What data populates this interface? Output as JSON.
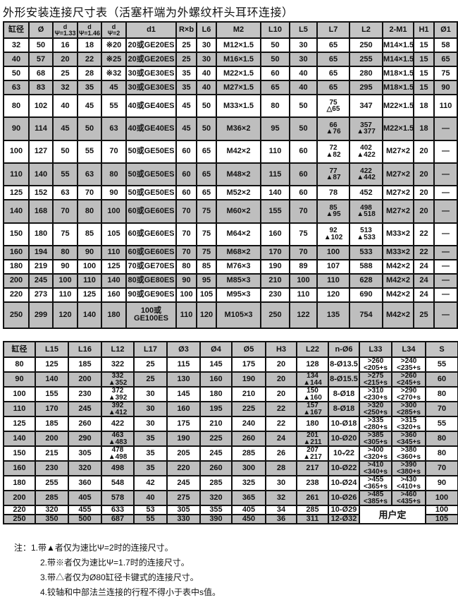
{
  "title": "外形安装连接尺寸表（活塞杆端为外螺纹杆头耳环连接）",
  "colors": {
    "shaded_row": "#bebebe",
    "header": "#c4c4c4",
    "border": "#111111"
  },
  "table1": {
    "headers": [
      "缸径",
      "Ø",
      "d\nΨ=1.33",
      "d\nΨ=1.46",
      "d\nΨ=2",
      "d1",
      "R×b",
      "L6",
      "M2",
      "L10",
      "L5",
      "L7",
      "L2",
      "2-M1",
      "H1",
      "Ø1"
    ],
    "rows": [
      [
        "32",
        "50",
        "16",
        "18",
        "※20",
        "20或GE20ES",
        "25",
        "30",
        "M12×1.5",
        "50",
        "30",
        "65",
        "250",
        "M14×1.5",
        "15",
        "58"
      ],
      [
        "40",
        "57",
        "20",
        "22",
        "※25",
        "20或GE20ES",
        "25",
        "30",
        "M16×1.5",
        "50",
        "30",
        "65",
        "255",
        "M14×1.5",
        "15",
        "65"
      ],
      [
        "50",
        "68",
        "25",
        "28",
        "※32",
        "30或GE30ES",
        "35",
        "40",
        "M22×1.5",
        "60",
        "40",
        "65",
        "280",
        "M18×1.5",
        "15",
        "75"
      ],
      [
        "63",
        "83",
        "32",
        "35",
        "45",
        "30或GE30ES",
        "35",
        "40",
        "M27×1.5",
        "65",
        "40",
        "65",
        "295",
        "M18×1.5",
        "15",
        "90"
      ],
      [
        "80",
        "102",
        "40",
        "45",
        "55",
        "40或GE40ES",
        "45",
        "50",
        "M33×1.5",
        "80",
        "50",
        "75\n△65",
        "347",
        "M22×1.5",
        "18",
        "110"
      ],
      [
        "90",
        "114",
        "45",
        "50",
        "63",
        "40或GE40ES",
        "45",
        "50",
        "M36×2",
        "95",
        "50",
        "66\n▲76",
        "357\n▲377",
        "M22×1.5",
        "18",
        "—"
      ],
      [
        "100",
        "127",
        "50",
        "55",
        "70",
        "50或GE50ES",
        "60",
        "65",
        "M42×2",
        "110",
        "60",
        "72\n▲82",
        "402\n▲422",
        "M27×2",
        "20",
        "—"
      ],
      [
        "110",
        "140",
        "55",
        "63",
        "80",
        "50或GE50ES",
        "60",
        "65",
        "M48×2",
        "115",
        "60",
        "77\n▲87",
        "422\n▲442",
        "M27×2",
        "20",
        "—"
      ],
      [
        "125",
        "152",
        "63",
        "70",
        "90",
        "50或GE50ES",
        "60",
        "65",
        "M52×2",
        "140",
        "60",
        "78",
        "452",
        "M27×2",
        "20",
        "—"
      ],
      [
        "140",
        "168",
        "70",
        "80",
        "100",
        "60或GE60ES",
        "70",
        "75",
        "M60×2",
        "155",
        "70",
        "85\n▲95",
        "498\n▲518",
        "M27×2",
        "20",
        "—"
      ],
      [
        "150",
        "180",
        "75",
        "85",
        "105",
        "60或GE60ES",
        "70",
        "75",
        "M64×2",
        "160",
        "75",
        "92\n▲102",
        "513\n▲533",
        "M33×2",
        "22",
        "—"
      ],
      [
        "160",
        "194",
        "80",
        "90",
        "110",
        "60或GE60ES",
        "70",
        "75",
        "M68×2",
        "170",
        "70",
        "100",
        "533",
        "M33×2",
        "22",
        "—"
      ],
      [
        "180",
        "219",
        "90",
        "100",
        "125",
        "70或GE70ES",
        "80",
        "85",
        "M76×3",
        "190",
        "89",
        "107",
        "588",
        "M42×2",
        "24",
        "—"
      ],
      [
        "200",
        "245",
        "100",
        "110",
        "140",
        "80或GE80ES",
        "90",
        "95",
        "M85×3",
        "210",
        "100",
        "110",
        "628",
        "M42×2",
        "24",
        "—"
      ],
      [
        "220",
        "273",
        "110",
        "125",
        "160",
        "90或GE90ES",
        "100",
        "105",
        "M95×3",
        "230",
        "110",
        "120",
        "690",
        "M42×2",
        "24",
        "—"
      ],
      [
        "250",
        "299",
        "120",
        "140",
        "180",
        "100或GE100ES",
        "110",
        "120",
        "M105×3",
        "250",
        "122",
        "135",
        "754",
        "M42×2",
        "25",
        "—"
      ]
    ]
  },
  "table2": {
    "headers": [
      "缸径",
      "L15",
      "L16",
      "L12",
      "L17",
      "Ø3",
      "Ø4",
      "Ø5",
      "H3",
      "L22",
      "n-Ø6",
      "L33",
      "L34",
      "S"
    ],
    "custom_label": "用户定",
    "rows": [
      [
        "80",
        "125",
        "185",
        "322",
        "25",
        "115",
        "145",
        "175",
        "20",
        "128",
        "8-Ø13.5",
        ">260\n<205+s",
        ">240\n<235+s",
        "55"
      ],
      [
        "90",
        "140",
        "200",
        "332\n▲352",
        "25",
        "130",
        "160",
        "190",
        "20",
        "134\n▲144",
        "8-Ø15.5",
        ">275\n<215+s",
        ">260\n<245+s",
        "60"
      ],
      [
        "100",
        "155",
        "230",
        "372\n▲392",
        "30",
        "145",
        "180",
        "210",
        "20",
        "150\n▲160",
        "8-Ø18",
        ">310\n<230+s",
        ">290\n<270+s",
        "80"
      ],
      [
        "110",
        "170",
        "245",
        "392\n▲412",
        "30",
        "160",
        "195",
        "225",
        "22",
        "157\n▲167",
        "8-Ø18",
        ">320\n<250+s",
        ">300\n<285+s",
        "70"
      ],
      [
        "125",
        "185",
        "260",
        "422",
        "30",
        "175",
        "210",
        "240",
        "22",
        "180",
        "10-Ø18",
        ">335\n<280+s",
        ">315\n<320+s",
        "55"
      ],
      [
        "140",
        "200",
        "290",
        "463\n▲483",
        "35",
        "190",
        "225",
        "260",
        "24",
        "201\n▲211",
        "10-Ø20",
        ">385\n<305+s",
        ">360\n<345+s",
        "80"
      ],
      [
        "150",
        "215",
        "305",
        "478\n▲498",
        "35",
        "205",
        "245",
        "285",
        "26",
        "207\n▲217",
        "10-∕22",
        ">400\n<320+s",
        ">380\n<360+s",
        "80"
      ],
      [
        "160",
        "230",
        "320",
        "498",
        "35",
        "220",
        "260",
        "300",
        "28",
        "217",
        "10-Ø22",
        ">410\n<340+s",
        ">390\n<380+s",
        "70"
      ],
      [
        "180",
        "255",
        "360",
        "548",
        "42",
        "245",
        "285",
        "325",
        "30",
        "238",
        "10-Ø24",
        ">455\n<365+s",
        ">430\n<410+s",
        "90"
      ],
      [
        "200",
        "285",
        "405",
        "578",
        "40",
        "275",
        "320",
        "365",
        "32",
        "261",
        "10-Ø26",
        ">485\n<385+s",
        ">460\n<435+s",
        "100"
      ],
      [
        "220",
        "320",
        "455",
        "633",
        "53",
        "305",
        "355",
        "405",
        "34",
        "285",
        "10-Ø29",
        "100"
      ],
      [
        "250",
        "350",
        "500",
        "687",
        "55",
        "330",
        "390",
        "450",
        "36",
        "311",
        "12-Ø32",
        "105"
      ]
    ]
  },
  "notes": [
    "注：1.带▲者仅为速比Ψ=2时的连接尺寸。",
    "2.带※者仅为速比Ψ=1.7时的连接尺寸。",
    "3.带△者仅为Ø80缸径卡键式的连接尺寸。",
    "4.铰轴和中部法兰连接的行程不得小于表中s值。"
  ]
}
